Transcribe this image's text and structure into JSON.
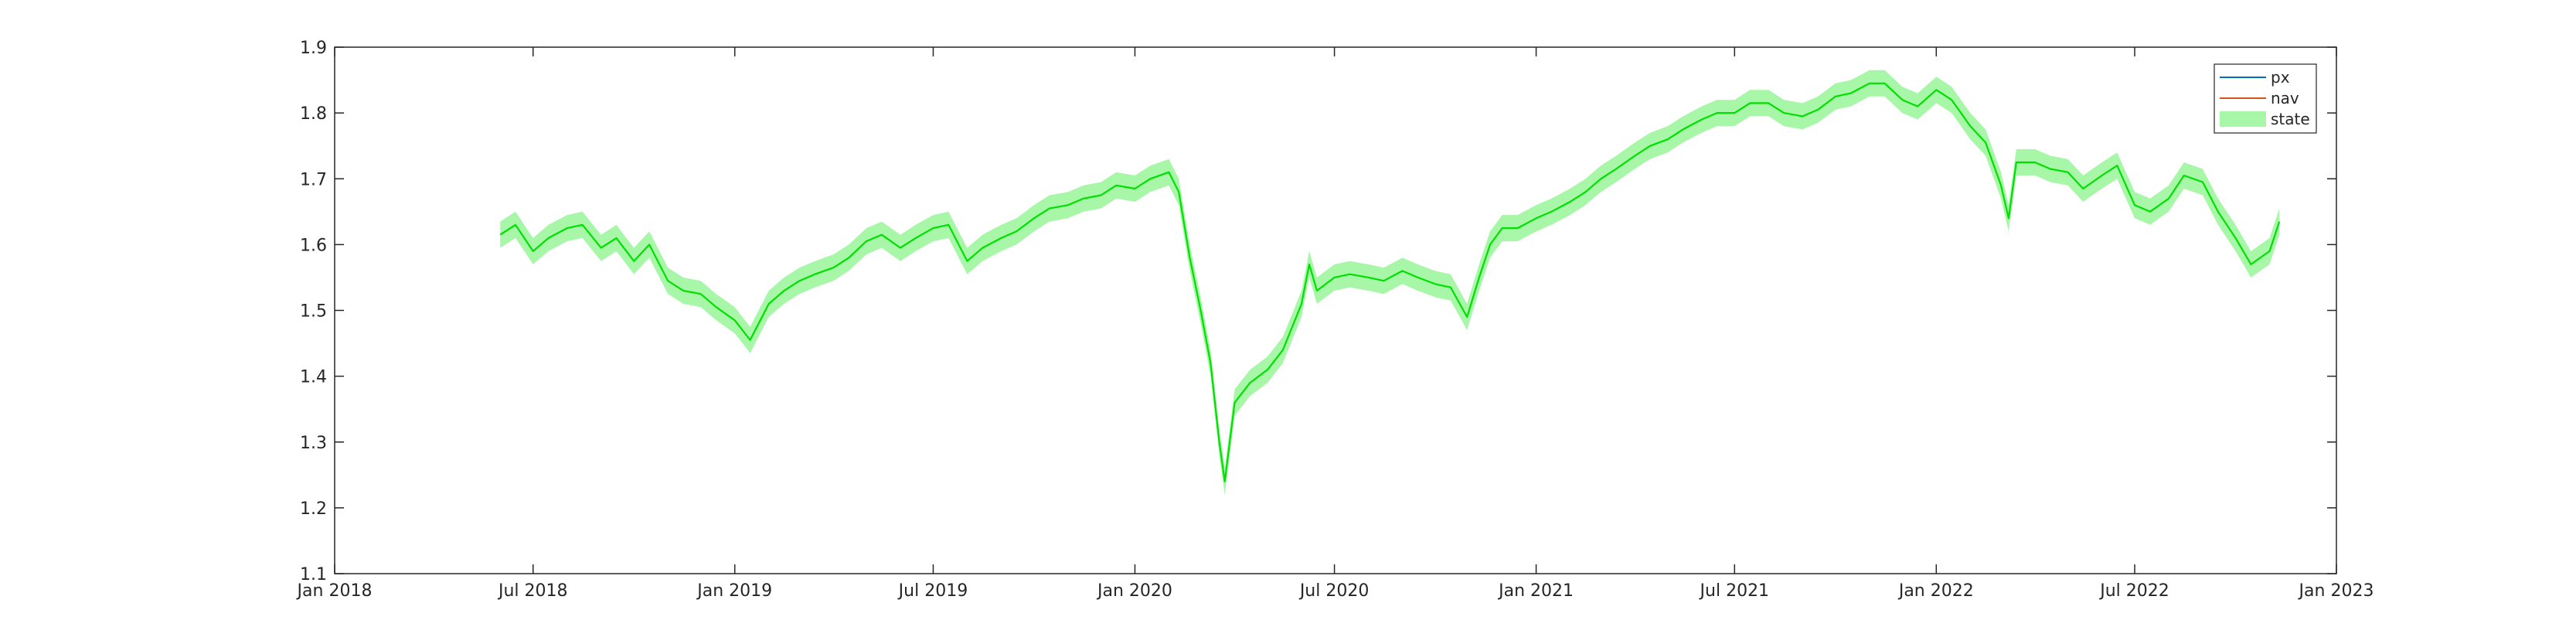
{
  "chart_data": {
    "type": "line",
    "title": "",
    "xlabel": "",
    "ylabel": "",
    "xlim": [
      "2018-01-01",
      "2023-01-01"
    ],
    "ylim": [
      1.1,
      1.9
    ],
    "x_ticks": [
      "2018-01-01",
      "2018-07-01",
      "2019-01-01",
      "2019-07-01",
      "2020-01-01",
      "2020-07-01",
      "2021-01-01",
      "2021-07-01",
      "2022-01-01",
      "2022-07-01",
      "2023-01-01"
    ],
    "x_tick_labels": [
      "Jan 2018",
      "Jul 2018",
      "Jan 2019",
      "Jul 2019",
      "Jan 2020",
      "Jul 2020",
      "Jan 2021",
      "Jul 2021",
      "Jan 2022",
      "Jul 2022",
      "Jan 2023"
    ],
    "y_ticks": [
      1.1,
      1.2,
      1.3,
      1.4,
      1.5,
      1.6,
      1.7,
      1.8,
      1.9
    ],
    "y_tick_labels": [
      "1.1",
      "1.2",
      "1.3",
      "1.4",
      "1.5",
      "1.6",
      "1.7",
      "1.8",
      "1.9"
    ],
    "grid": false,
    "legend_position": "top-right",
    "band_halfwidth": 0.02,
    "series": [
      {
        "name": "px",
        "color": "#0072BD",
        "style": "line"
      },
      {
        "name": "nav",
        "color": "#D95319",
        "style": "line"
      },
      {
        "name": "state",
        "color": "#00E000",
        "band_color": "#A8F7A8",
        "style": "line+band",
        "x": [
          "2018-06-01",
          "2018-06-15",
          "2018-07-01",
          "2018-07-15",
          "2018-08-01",
          "2018-08-15",
          "2018-09-01",
          "2018-09-15",
          "2018-10-01",
          "2018-10-15",
          "2018-11-01",
          "2018-11-15",
          "2018-12-01",
          "2018-12-15",
          "2019-01-01",
          "2019-01-15",
          "2019-02-01",
          "2019-02-15",
          "2019-03-01",
          "2019-03-15",
          "2019-04-01",
          "2019-04-15",
          "2019-05-01",
          "2019-05-15",
          "2019-06-01",
          "2019-06-15",
          "2019-07-01",
          "2019-07-15",
          "2019-08-01",
          "2019-08-15",
          "2019-09-01",
          "2019-09-15",
          "2019-10-01",
          "2019-10-15",
          "2019-11-01",
          "2019-11-15",
          "2019-12-01",
          "2019-12-15",
          "2020-01-01",
          "2020-01-15",
          "2020-02-01",
          "2020-02-10",
          "2020-02-20",
          "2020-03-01",
          "2020-03-10",
          "2020-03-18",
          "2020-03-23",
          "2020-04-01",
          "2020-04-15",
          "2020-05-01",
          "2020-05-15",
          "2020-06-01",
          "2020-06-08",
          "2020-06-15",
          "2020-07-01",
          "2020-07-15",
          "2020-08-01",
          "2020-08-15",
          "2020-09-01",
          "2020-09-15",
          "2020-10-01",
          "2020-10-15",
          "2020-10-30",
          "2020-11-10",
          "2020-11-20",
          "2020-12-01",
          "2020-12-15",
          "2021-01-01",
          "2021-01-15",
          "2021-02-01",
          "2021-02-15",
          "2021-03-01",
          "2021-03-15",
          "2021-04-01",
          "2021-04-15",
          "2021-05-01",
          "2021-05-15",
          "2021-06-01",
          "2021-06-15",
          "2021-07-01",
          "2021-07-15",
          "2021-08-01",
          "2021-08-15",
          "2021-09-01",
          "2021-09-15",
          "2021-10-01",
          "2021-10-15",
          "2021-11-01",
          "2021-11-15",
          "2021-12-01",
          "2021-12-15",
          "2022-01-01",
          "2022-01-15",
          "2022-02-01",
          "2022-02-15",
          "2022-03-01",
          "2022-03-08",
          "2022-03-15",
          "2022-04-01",
          "2022-04-15",
          "2022-05-01",
          "2022-05-15",
          "2022-06-01",
          "2022-06-15",
          "2022-07-01",
          "2022-07-15",
          "2022-08-01",
          "2022-08-15",
          "2022-09-01",
          "2022-09-15",
          "2022-10-01",
          "2022-10-15",
          "2022-11-01",
          "2022-11-10"
        ],
        "values": [
          1.615,
          1.63,
          1.59,
          1.61,
          1.625,
          1.63,
          1.595,
          1.61,
          1.575,
          1.6,
          1.545,
          1.53,
          1.525,
          1.505,
          1.485,
          1.455,
          1.51,
          1.53,
          1.545,
          1.555,
          1.565,
          1.58,
          1.605,
          1.615,
          1.595,
          1.61,
          1.625,
          1.63,
          1.575,
          1.595,
          1.61,
          1.62,
          1.64,
          1.655,
          1.66,
          1.67,
          1.675,
          1.69,
          1.685,
          1.7,
          1.71,
          1.68,
          1.58,
          1.5,
          1.42,
          1.3,
          1.24,
          1.36,
          1.39,
          1.41,
          1.44,
          1.51,
          1.57,
          1.53,
          1.55,
          1.555,
          1.55,
          1.545,
          1.56,
          1.55,
          1.54,
          1.535,
          1.49,
          1.55,
          1.6,
          1.625,
          1.625,
          1.64,
          1.65,
          1.665,
          1.68,
          1.7,
          1.715,
          1.735,
          1.75,
          1.76,
          1.775,
          1.79,
          1.8,
          1.8,
          1.815,
          1.815,
          1.8,
          1.795,
          1.805,
          1.825,
          1.83,
          1.845,
          1.845,
          1.82,
          1.81,
          1.835,
          1.82,
          1.78,
          1.755,
          1.69,
          1.64,
          1.725,
          1.725,
          1.715,
          1.71,
          1.685,
          1.705,
          1.72,
          1.66,
          1.65,
          1.67,
          1.705,
          1.695,
          1.65,
          1.61,
          1.57,
          1.59,
          1.635
        ]
      }
    ]
  }
}
